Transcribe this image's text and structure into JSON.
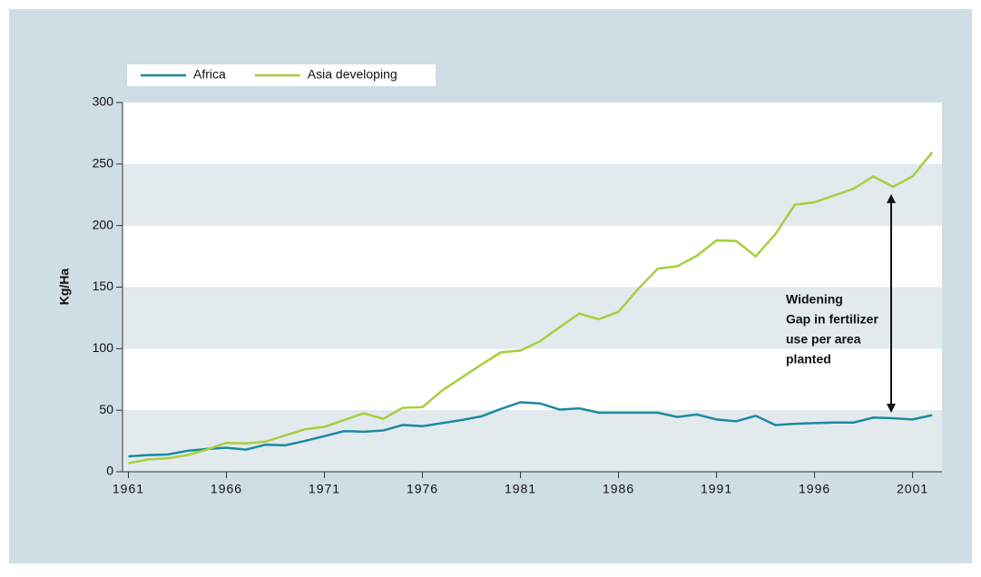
{
  "chart_data": {
    "type": "line",
    "y_label": "Kg/Ha",
    "x": [
      1961,
      1962,
      1963,
      1964,
      1965,
      1966,
      1967,
      1968,
      1969,
      1970,
      1971,
      1972,
      1973,
      1974,
      1975,
      1976,
      1977,
      1978,
      1979,
      1980,
      1981,
      1982,
      1983,
      1984,
      1985,
      1986,
      1987,
      1988,
      1989,
      1990,
      1991,
      1992,
      1993,
      1994,
      1995,
      1996,
      1997,
      1998,
      1999,
      2000,
      2001,
      2002
    ],
    "series": [
      {
        "name": "Africa",
        "color": "#1a8aa0",
        "values": [
          12.5,
          13.5,
          14,
          17,
          18.5,
          19.5,
          18,
          22,
          21.5,
          25,
          29,
          33,
          32.5,
          33.5,
          38,
          37,
          39.5,
          42,
          45,
          51,
          56.5,
          55.5,
          50.5,
          51.5,
          48,
          48,
          48,
          48,
          44.5,
          46.5,
          42.5,
          41,
          45.5,
          38,
          39,
          39.5,
          40,
          40,
          44,
          43.5,
          42.5,
          46
        ]
      },
      {
        "name": "Asia developing",
        "color": "#a6cf3c",
        "values": [
          7,
          10,
          11,
          13.5,
          18,
          23.5,
          23,
          24.5,
          29.5,
          34.5,
          36.5,
          42,
          47.5,
          43,
          52,
          52.5,
          66,
          76.5,
          87,
          97,
          98.5,
          106,
          117.5,
          128.5,
          124,
          130,
          148.5,
          165,
          167,
          175.5,
          188,
          187.5,
          175,
          193,
          217,
          219,
          224.5,
          230,
          240,
          231.5,
          240,
          259.5
        ]
      }
    ],
    "xlim": [
      1960.7,
      2002.5
    ],
    "xticks": [
      1961,
      1966,
      1971,
      1976,
      1981,
      1986,
      1991,
      1996,
      2001
    ],
    "ylim": [
      0,
      300
    ],
    "yticks": [
      0,
      50,
      100,
      150,
      200,
      250,
      300
    ],
    "annotation": [
      "Widening",
      "Gap in fertilizer",
      "use per area",
      "planted"
    ]
  }
}
